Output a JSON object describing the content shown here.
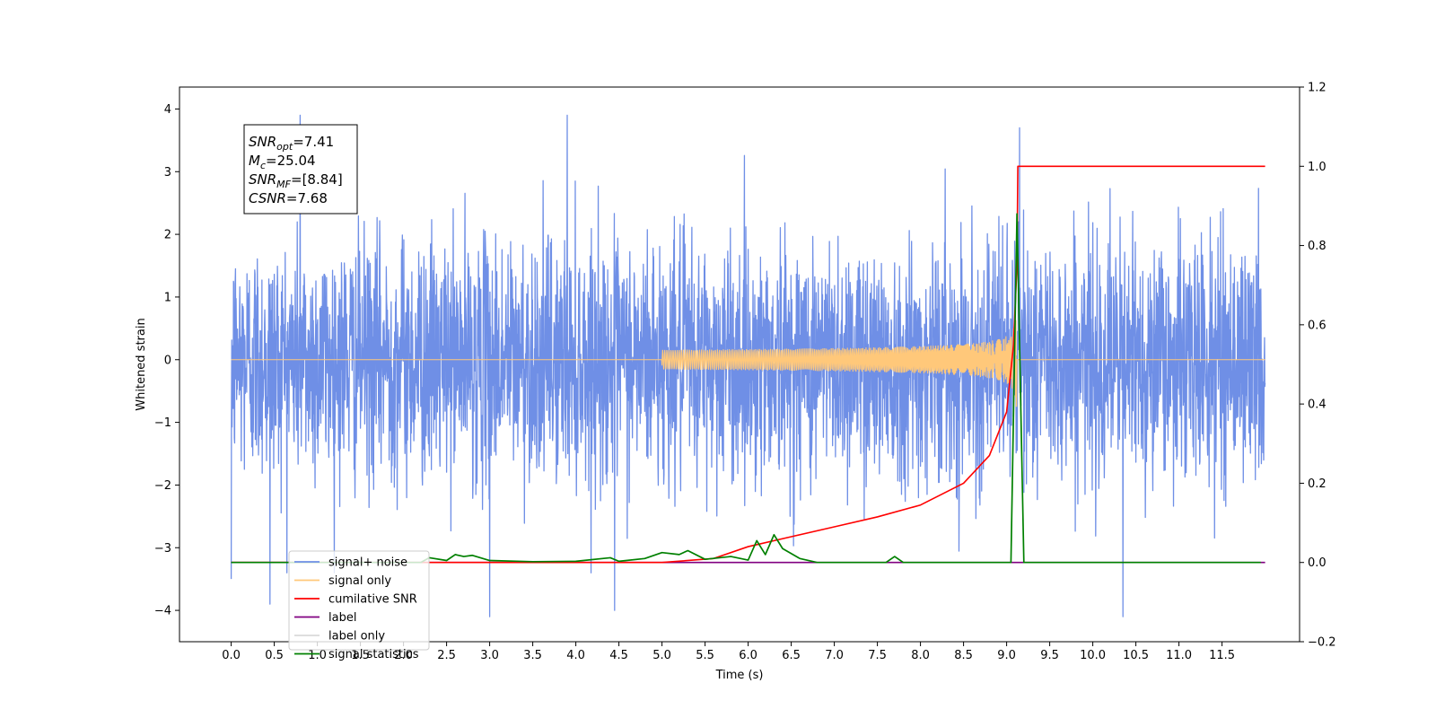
{
  "chart_data": {
    "type": "line",
    "xlabel": "Time (s)",
    "ylabel": "Whitened strain",
    "xlim": [
      -0.6,
      12.4
    ],
    "ylim": [
      -4.5,
      4.35
    ],
    "y2lim": [
      -0.2,
      1.2
    ],
    "x_ticks": [
      "0.0",
      "0.5",
      "1.0",
      "1.5",
      "2.0",
      "2.5",
      "3.0",
      "3.5",
      "4.0",
      "4.5",
      "5.0",
      "5.5",
      "6.0",
      "6.5",
      "7.0",
      "7.5",
      "8.0",
      "8.5",
      "9.0",
      "9.5",
      "10.0",
      "10.5",
      "11.0",
      "11.5"
    ],
    "y_ticks": [
      "4",
      "3",
      "2",
      "1",
      "0",
      "−1",
      "−2",
      "−3",
      "−4"
    ],
    "y2_ticks": [
      "1.2",
      "1.0",
      "0.8",
      "0.6",
      "0.4",
      "0.2",
      "0.0",
      "−0.2"
    ],
    "annotation": {
      "lines": [
        {
          "sym": "SNR",
          "sub": "opt",
          "val": "=7.41"
        },
        {
          "sym": "M",
          "sub": "c",
          "val": "=25.04"
        },
        {
          "sym": "SNR",
          "sub": "MF",
          "val": "=[8.84]"
        },
        {
          "sym": "CSNR",
          "sub": "",
          "val": "=7.68"
        }
      ]
    },
    "legend": {
      "placement": "lower-left",
      "entries": [
        {
          "label": "signal+ noise",
          "color": "#6f8fe6"
        },
        {
          "label": "signal only",
          "color": "#ffc87a"
        },
        {
          "label": "cumilative SNR",
          "color": "#ff0000"
        },
        {
          "label": "label",
          "color": "#800080"
        },
        {
          "label": "label only",
          "color": "#d9d9d9"
        },
        {
          "label": "signal statistics",
          "color": "#008000"
        }
      ]
    },
    "series": [
      {
        "name": "signal+ noise",
        "axis": "left",
        "color": "#6f8fe6",
        "x_start": 0.0,
        "x_end": 12.0,
        "std": 0.95,
        "peaks": [
          [
            0.8,
            3.9
          ],
          [
            3.9,
            3.9
          ],
          [
            9.15,
            3.7
          ],
          [
            0.0,
            -3.5
          ],
          [
            0.45,
            -3.9
          ],
          [
            3.0,
            -4.1
          ],
          [
            4.45,
            -4.0
          ],
          [
            10.35,
            -4.1
          ]
        ]
      },
      {
        "name": "signal only",
        "axis": "left",
        "color": "#ffc87a",
        "chirp_start": 5.0,
        "merger": 9.12,
        "peak_amplitude": 0.75
      },
      {
        "name": "cumilative SNR",
        "axis": "right",
        "color": "#ff0000",
        "points": [
          [
            0.0,
            0.0
          ],
          [
            5.0,
            0.0
          ],
          [
            5.6,
            0.01
          ],
          [
            6.0,
            0.04
          ],
          [
            6.5,
            0.065
          ],
          [
            7.0,
            0.09
          ],
          [
            7.5,
            0.115
          ],
          [
            8.0,
            0.145
          ],
          [
            8.5,
            0.2
          ],
          [
            8.8,
            0.27
          ],
          [
            9.0,
            0.38
          ],
          [
            9.08,
            0.55
          ],
          [
            9.12,
            0.75
          ],
          [
            9.13,
            1.0
          ],
          [
            12.0,
            1.0
          ]
        ]
      },
      {
        "name": "label",
        "axis": "right",
        "color": "#800080",
        "points": [
          [
            0.0,
            0.0
          ],
          [
            12.0,
            0.0
          ]
        ]
      },
      {
        "name": "signal statistics",
        "axis": "right",
        "color": "#008000",
        "points": [
          [
            0.0,
            0.0
          ],
          [
            2.2,
            0.0
          ],
          [
            2.3,
            0.012
          ],
          [
            2.5,
            0.005
          ],
          [
            2.6,
            0.02
          ],
          [
            2.7,
            0.015
          ],
          [
            2.8,
            0.018
          ],
          [
            3.0,
            0.005
          ],
          [
            3.5,
            0.002
          ],
          [
            4.0,
            0.003
          ],
          [
            4.4,
            0.012
          ],
          [
            4.5,
            0.003
          ],
          [
            4.8,
            0.01
          ],
          [
            5.0,
            0.025
          ],
          [
            5.2,
            0.02
          ],
          [
            5.3,
            0.03
          ],
          [
            5.5,
            0.008
          ],
          [
            5.8,
            0.015
          ],
          [
            6.0,
            0.006
          ],
          [
            6.1,
            0.055
          ],
          [
            6.2,
            0.02
          ],
          [
            6.3,
            0.07
          ],
          [
            6.4,
            0.035
          ],
          [
            6.6,
            0.01
          ],
          [
            6.8,
            0.0
          ],
          [
            7.6,
            0.0
          ],
          [
            7.7,
            0.015
          ],
          [
            7.8,
            0.0
          ],
          [
            9.05,
            0.0
          ],
          [
            9.12,
            0.88
          ],
          [
            9.2,
            0.0
          ],
          [
            11.95,
            0.0
          ]
        ]
      }
    ]
  }
}
